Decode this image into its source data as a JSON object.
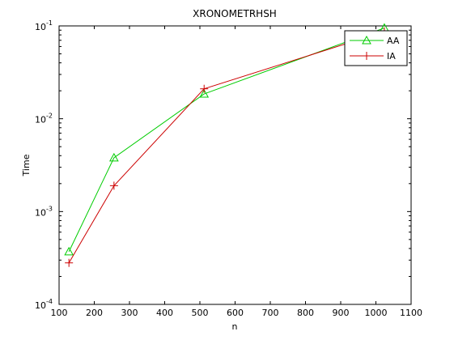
{
  "chart_data": {
    "type": "line",
    "title": "XRONOMETRHSH",
    "xlabel": "n",
    "ylabel": "Time",
    "xlim": [
      100,
      1100
    ],
    "ylim": [
      0.0001,
      0.1
    ],
    "yscale": "log",
    "grid": false,
    "legend_position": "top-right",
    "x_ticks": [
      100,
      200,
      300,
      400,
      500,
      600,
      700,
      800,
      900,
      1000,
      1100
    ],
    "y_ticks": [
      {
        "value": 0.0001,
        "base": "10",
        "exp": "-4"
      },
      {
        "value": 0.001,
        "base": "10",
        "exp": "-3"
      },
      {
        "value": 0.01,
        "base": "10",
        "exp": "-2"
      },
      {
        "value": 0.1,
        "base": "10",
        "exp": "-1"
      }
    ],
    "x": [
      128,
      256,
      512,
      1024
    ],
    "series": [
      {
        "name": "AA",
        "values": [
          0.00037,
          0.0038,
          0.0185,
          0.095
        ],
        "color": "#00cc00",
        "marker": "triangle"
      },
      {
        "name": "IA",
        "values": [
          0.00028,
          0.0019,
          0.021,
          0.087
        ],
        "color": "#cc0000",
        "marker": "plus"
      }
    ]
  }
}
